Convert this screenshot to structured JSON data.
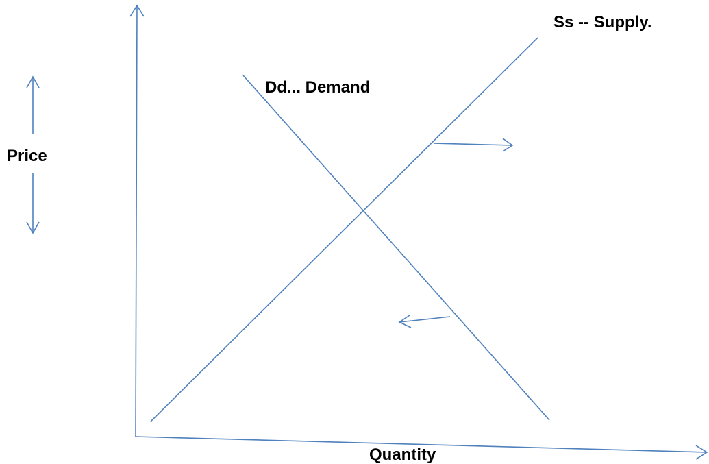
{
  "labels": {
    "supply": "Ss -- Supply.",
    "demand": "Dd... Demand",
    "y_axis": "Price",
    "x_axis": "Quantity"
  }
}
